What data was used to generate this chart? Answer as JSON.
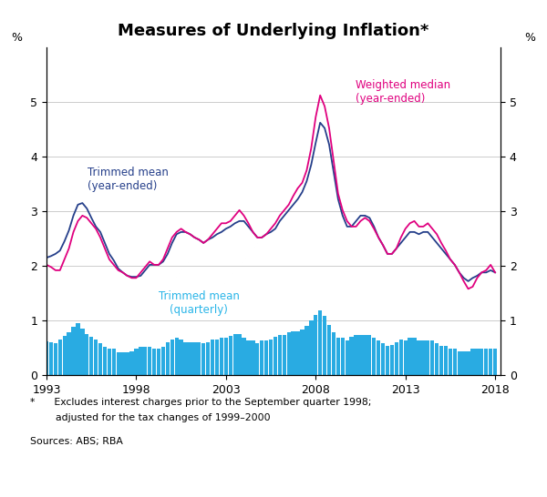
{
  "title": "Measures of Underlying Inflation*",
  "ylabel_left": "%",
  "ylabel_right": "%",
  "footnote1": "*      Excludes interest charges prior to the September quarter 1998;",
  "footnote2": "        adjusted for the tax changes of 1999–2000",
  "footnote3": "Sources: ABS; RBA",
  "ylim": [
    0.0,
    6.0
  ],
  "yticks": [
    0,
    1,
    2,
    3,
    4,
    5
  ],
  "xmin": 1993.0,
  "xmax": 2018.3,
  "line_color_trimmed_mean": "#253f8a",
  "line_color_weighted_median": "#e0007f",
  "bar_color": "#29abe2",
  "xticks": [
    1993,
    1998,
    2003,
    2008,
    2013,
    2018
  ],
  "trimmed_mean_ye_x": [
    1993.0,
    1993.25,
    1993.5,
    1993.75,
    1994.0,
    1994.25,
    1994.5,
    1994.75,
    1995.0,
    1995.25,
    1995.5,
    1995.75,
    1996.0,
    1996.25,
    1996.5,
    1996.75,
    1997.0,
    1997.25,
    1997.5,
    1997.75,
    1998.0,
    1998.25,
    1998.5,
    1998.75,
    1999.0,
    1999.25,
    1999.5,
    1999.75,
    2000.0,
    2000.25,
    2000.5,
    2000.75,
    2001.0,
    2001.25,
    2001.5,
    2001.75,
    2002.0,
    2002.25,
    2002.5,
    2002.75,
    2003.0,
    2003.25,
    2003.5,
    2003.75,
    2004.0,
    2004.25,
    2004.5,
    2004.75,
    2005.0,
    2005.25,
    2005.5,
    2005.75,
    2006.0,
    2006.25,
    2006.5,
    2006.75,
    2007.0,
    2007.25,
    2007.5,
    2007.75,
    2008.0,
    2008.25,
    2008.5,
    2008.75,
    2009.0,
    2009.25,
    2009.5,
    2009.75,
    2010.0,
    2010.25,
    2010.5,
    2010.75,
    2011.0,
    2011.25,
    2011.5,
    2011.75,
    2012.0,
    2012.25,
    2012.5,
    2012.75,
    2013.0,
    2013.25,
    2013.5,
    2013.75,
    2014.0,
    2014.25,
    2014.5,
    2014.75,
    2015.0,
    2015.25,
    2015.5,
    2015.75,
    2016.0,
    2016.25,
    2016.5,
    2016.75,
    2017.0,
    2017.25,
    2017.5,
    2017.75,
    2018.0
  ],
  "trimmed_mean_ye_y": [
    2.15,
    2.18,
    2.22,
    2.28,
    2.45,
    2.65,
    2.92,
    3.12,
    3.15,
    3.05,
    2.88,
    2.72,
    2.62,
    2.42,
    2.22,
    2.1,
    1.95,
    1.88,
    1.82,
    1.8,
    1.8,
    1.82,
    1.92,
    2.02,
    2.02,
    2.02,
    2.08,
    2.22,
    2.42,
    2.58,
    2.62,
    2.62,
    2.58,
    2.52,
    2.48,
    2.42,
    2.48,
    2.52,
    2.58,
    2.62,
    2.68,
    2.72,
    2.78,
    2.82,
    2.82,
    2.72,
    2.62,
    2.52,
    2.52,
    2.58,
    2.62,
    2.68,
    2.82,
    2.92,
    3.02,
    3.12,
    3.22,
    3.35,
    3.55,
    3.85,
    4.25,
    4.62,
    4.52,
    4.22,
    3.72,
    3.22,
    2.92,
    2.72,
    2.72,
    2.82,
    2.92,
    2.92,
    2.88,
    2.72,
    2.52,
    2.38,
    2.22,
    2.22,
    2.32,
    2.42,
    2.52,
    2.62,
    2.62,
    2.58,
    2.62,
    2.62,
    2.52,
    2.42,
    2.32,
    2.22,
    2.12,
    2.02,
    1.88,
    1.78,
    1.72,
    1.78,
    1.82,
    1.88,
    1.88,
    1.92,
    1.88
  ],
  "weighted_median_ye_y": [
    2.02,
    1.98,
    1.92,
    1.92,
    2.12,
    2.32,
    2.62,
    2.82,
    2.92,
    2.88,
    2.78,
    2.68,
    2.52,
    2.32,
    2.12,
    2.02,
    1.92,
    1.88,
    1.82,
    1.78,
    1.78,
    1.88,
    1.98,
    2.08,
    2.02,
    2.02,
    2.12,
    2.32,
    2.52,
    2.62,
    2.68,
    2.62,
    2.58,
    2.52,
    2.48,
    2.42,
    2.48,
    2.58,
    2.68,
    2.78,
    2.78,
    2.82,
    2.92,
    3.02,
    2.92,
    2.78,
    2.62,
    2.52,
    2.52,
    2.58,
    2.68,
    2.78,
    2.92,
    3.02,
    3.12,
    3.28,
    3.42,
    3.52,
    3.75,
    4.15,
    4.72,
    5.12,
    4.92,
    4.52,
    3.92,
    3.32,
    3.02,
    2.82,
    2.72,
    2.72,
    2.82,
    2.88,
    2.82,
    2.68,
    2.52,
    2.38,
    2.22,
    2.22,
    2.32,
    2.52,
    2.68,
    2.78,
    2.82,
    2.72,
    2.72,
    2.78,
    2.68,
    2.58,
    2.42,
    2.28,
    2.12,
    2.02,
    1.88,
    1.72,
    1.58,
    1.62,
    1.78,
    1.88,
    1.92,
    2.02,
    1.88
  ],
  "trimmed_mean_q_x": [
    1993.0,
    1993.25,
    1993.5,
    1993.75,
    1994.0,
    1994.25,
    1994.5,
    1994.75,
    1995.0,
    1995.25,
    1995.5,
    1995.75,
    1996.0,
    1996.25,
    1996.5,
    1996.75,
    1997.0,
    1997.25,
    1997.5,
    1997.75,
    1998.0,
    1998.25,
    1998.5,
    1998.75,
    1999.0,
    1999.25,
    1999.5,
    1999.75,
    2000.0,
    2000.25,
    2000.5,
    2000.75,
    2001.0,
    2001.25,
    2001.5,
    2001.75,
    2002.0,
    2002.25,
    2002.5,
    2002.75,
    2003.0,
    2003.25,
    2003.5,
    2003.75,
    2004.0,
    2004.25,
    2004.5,
    2004.75,
    2005.0,
    2005.25,
    2005.5,
    2005.75,
    2006.0,
    2006.25,
    2006.5,
    2006.75,
    2007.0,
    2007.25,
    2007.5,
    2007.75,
    2008.0,
    2008.25,
    2008.5,
    2008.75,
    2009.0,
    2009.25,
    2009.5,
    2009.75,
    2010.0,
    2010.25,
    2010.5,
    2010.75,
    2011.0,
    2011.25,
    2011.5,
    2011.75,
    2012.0,
    2012.25,
    2012.5,
    2012.75,
    2013.0,
    2013.25,
    2013.5,
    2013.75,
    2014.0,
    2014.25,
    2014.5,
    2014.75,
    2015.0,
    2015.25,
    2015.5,
    2015.75,
    2016.0,
    2016.25,
    2016.5,
    2016.75,
    2017.0,
    2017.25,
    2017.5,
    2017.75,
    2018.0
  ],
  "trimmed_mean_q_y": [
    0.62,
    0.6,
    0.58,
    0.65,
    0.72,
    0.78,
    0.88,
    0.95,
    0.85,
    0.75,
    0.7,
    0.65,
    0.58,
    0.52,
    0.48,
    0.48,
    0.42,
    0.42,
    0.42,
    0.43,
    0.48,
    0.52,
    0.52,
    0.52,
    0.48,
    0.48,
    0.52,
    0.6,
    0.65,
    0.68,
    0.65,
    0.6,
    0.6,
    0.6,
    0.6,
    0.58,
    0.6,
    0.65,
    0.65,
    0.68,
    0.68,
    0.72,
    0.75,
    0.75,
    0.68,
    0.63,
    0.63,
    0.58,
    0.63,
    0.63,
    0.65,
    0.7,
    0.73,
    0.73,
    0.78,
    0.8,
    0.8,
    0.83,
    0.9,
    1.0,
    1.1,
    1.18,
    1.08,
    0.92,
    0.78,
    0.68,
    0.68,
    0.63,
    0.7,
    0.73,
    0.73,
    0.73,
    0.73,
    0.68,
    0.63,
    0.58,
    0.53,
    0.55,
    0.6,
    0.65,
    0.63,
    0.68,
    0.68,
    0.63,
    0.63,
    0.63,
    0.63,
    0.58,
    0.53,
    0.53,
    0.48,
    0.48,
    0.43,
    0.43,
    0.43,
    0.48,
    0.48,
    0.48,
    0.48,
    0.48,
    0.48
  ]
}
